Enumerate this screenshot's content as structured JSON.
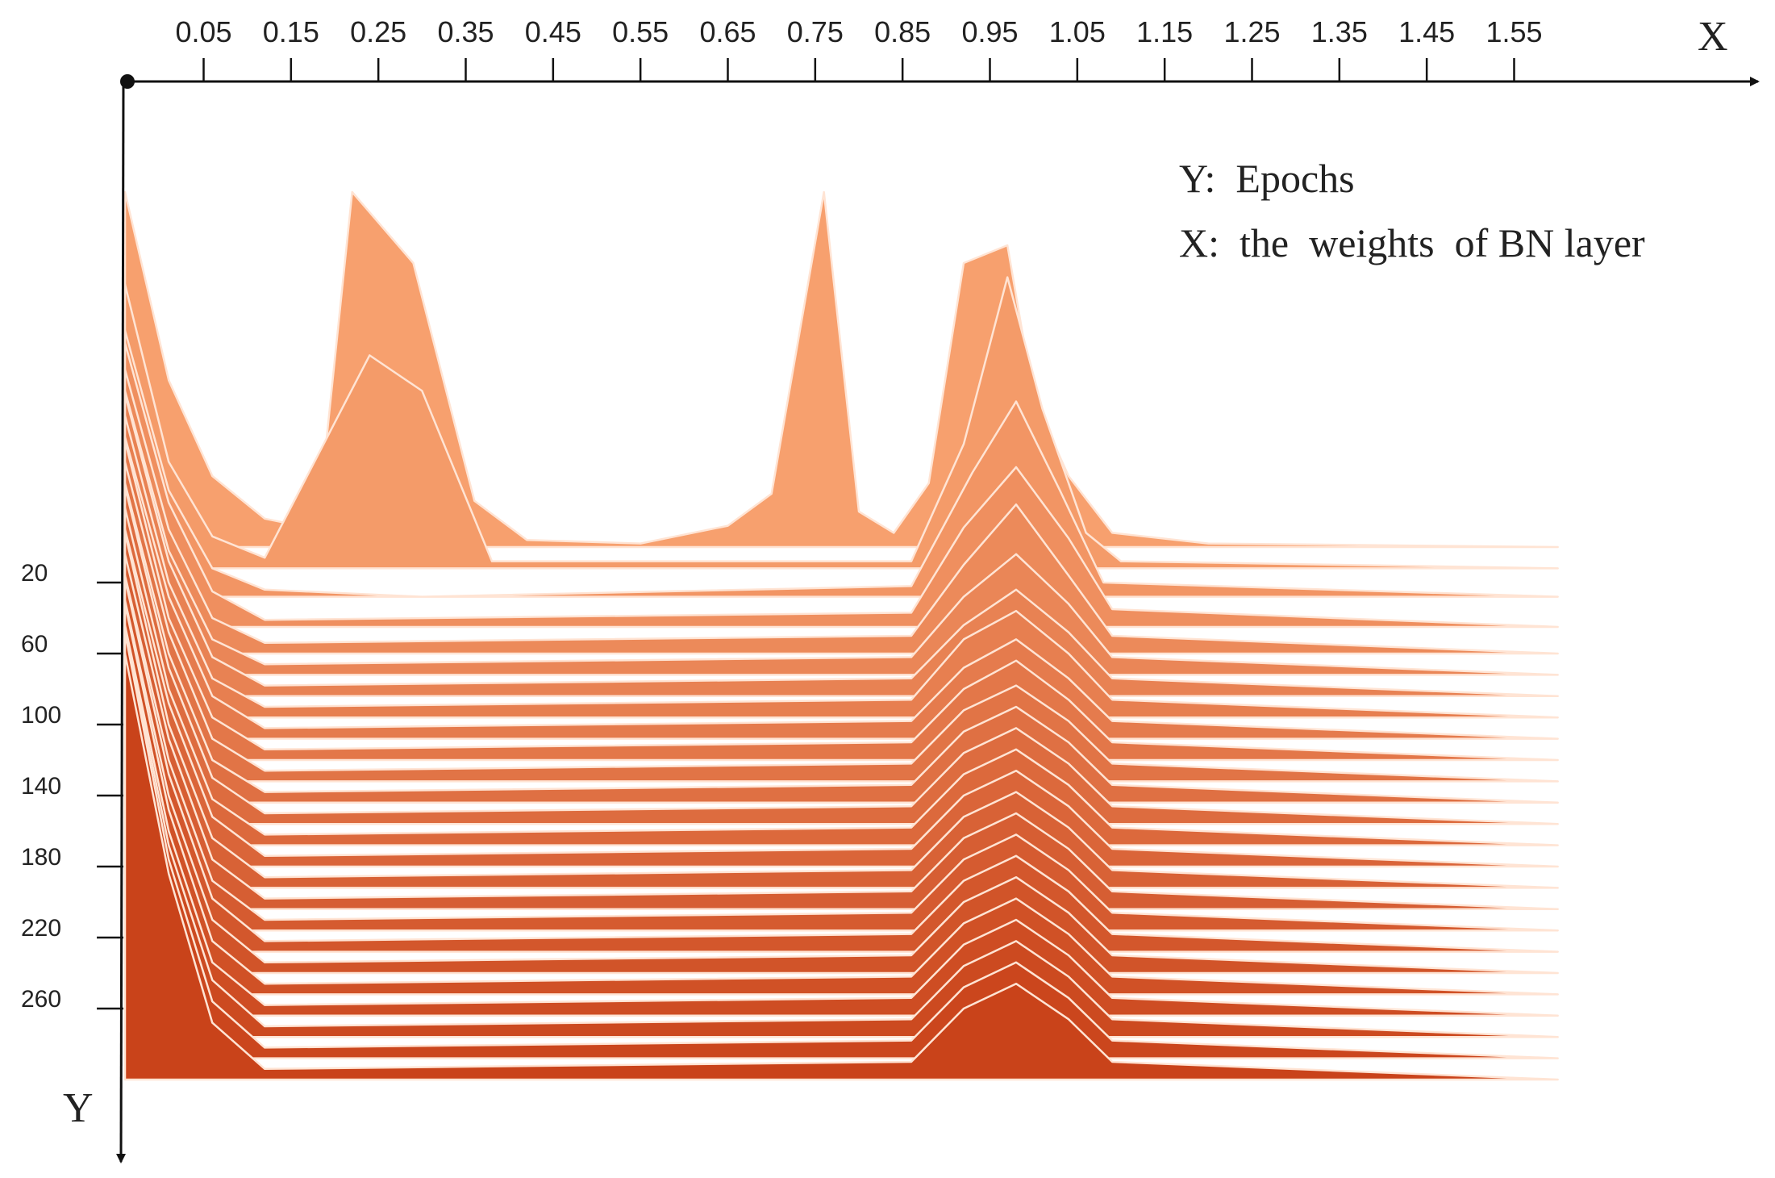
{
  "chart_data": {
    "type": "ridgeline",
    "title": "",
    "xlabel": "X",
    "ylabel": "Y",
    "legend": {
      "placement": "top-right",
      "lines": [
        "Y:  Epochs",
        "X:  the  weights  of BN layer"
      ]
    },
    "x_ticks": [
      "0.05",
      "0.15",
      "0.25",
      "0.35",
      "0.45",
      "0.55",
      "0.65",
      "0.75",
      "0.85",
      "0.95",
      "1.05",
      "1.15",
      "1.25",
      "1.35",
      "1.45",
      "1.55"
    ],
    "y_ticks": [
      "20",
      "60",
      "100",
      "140",
      "180",
      "220",
      "260"
    ],
    "xlim": [
      -0.04,
      1.7
    ],
    "ylim_epochs": [
      0,
      300
    ],
    "colors": {
      "early": "#F7A06E",
      "late": "#C9431A",
      "ridge_edge": "#FFE4D4",
      "axis": "#111111"
    },
    "series": [
      {
        "epoch": 0,
        "x": [
          -0.04,
          0.01,
          0.06,
          0.12,
          0.18,
          0.22,
          0.29,
          0.36,
          0.42,
          0.55,
          0.65,
          0.7,
          0.76,
          0.8,
          0.84,
          0.88,
          0.92,
          0.97,
          1.0,
          1.04,
          1.09,
          1.2,
          1.6
        ],
        "y": [
          1.0,
          0.47,
          0.2,
          0.08,
          0.05,
          1.0,
          0.8,
          0.13,
          0.02,
          0.01,
          0.06,
          0.15,
          1.0,
          0.1,
          0.04,
          0.18,
          0.8,
          0.85,
          0.42,
          0.2,
          0.04,
          0.01,
          0.0
        ]
      },
      {
        "epoch": 12,
        "x": [
          -0.04,
          0.01,
          0.06,
          0.12,
          0.24,
          0.3,
          0.38,
          0.86,
          0.92,
          0.97,
          1.01,
          1.06,
          1.1,
          1.6
        ],
        "y": [
          0.8,
          0.3,
          0.09,
          0.03,
          0.6,
          0.5,
          0.02,
          0.02,
          0.35,
          0.82,
          0.45,
          0.1,
          0.02,
          0.0
        ]
      },
      {
        "epoch": 28,
        "x": [
          -0.04,
          0.01,
          0.06,
          0.12,
          0.3,
          0.86,
          0.93,
          0.98,
          1.03,
          1.08,
          1.6
        ],
        "y": [
          0.75,
          0.3,
          0.08,
          0.02,
          0.0,
          0.03,
          0.35,
          0.55,
          0.3,
          0.04,
          0.0
        ]
      },
      {
        "epoch": 45,
        "x": [
          -0.04,
          0.01,
          0.06,
          0.12,
          0.86,
          0.92,
          0.98,
          1.04,
          1.09,
          1.6
        ],
        "y": [
          0.8,
          0.35,
          0.1,
          0.02,
          0.04,
          0.28,
          0.45,
          0.25,
          0.05,
          0.0
        ]
      },
      {
        "epoch": 60,
        "x": [
          -0.04,
          0.01,
          0.06,
          0.12,
          0.86,
          0.92,
          0.98,
          1.04,
          1.09,
          1.6
        ],
        "y": [
          0.8,
          0.35,
          0.1,
          0.03,
          0.05,
          0.25,
          0.42,
          0.22,
          0.05,
          0.0
        ]
      },
      {
        "epoch": 72,
        "x": [
          -0.04,
          0.01,
          0.06,
          0.12,
          0.86,
          0.92,
          0.98,
          1.04,
          1.09,
          1.6
        ],
        "y": [
          0.8,
          0.35,
          0.1,
          0.03,
          0.05,
          0.22,
          0.34,
          0.2,
          0.05,
          0.0
        ]
      },
      {
        "epoch": 84,
        "x": [
          -0.04,
          0.01,
          0.06,
          0.12,
          0.86,
          0.92,
          0.98,
          1.04,
          1.09,
          1.6
        ],
        "y": [
          0.85,
          0.38,
          0.11,
          0.03,
          0.05,
          0.2,
          0.3,
          0.18,
          0.05,
          0.0
        ]
      },
      {
        "epoch": 96,
        "x": [
          -0.04,
          0.01,
          0.06,
          0.12,
          0.86,
          0.92,
          0.98,
          1.04,
          1.09,
          1.6
        ],
        "y": [
          0.85,
          0.38,
          0.11,
          0.03,
          0.05,
          0.22,
          0.3,
          0.18,
          0.05,
          0.0
        ]
      },
      {
        "epoch": 108,
        "x": [
          -0.04,
          0.01,
          0.06,
          0.12,
          0.86,
          0.92,
          0.98,
          1.04,
          1.09,
          1.6
        ],
        "y": [
          0.85,
          0.4,
          0.12,
          0.03,
          0.05,
          0.2,
          0.28,
          0.17,
          0.05,
          0.0
        ]
      },
      {
        "epoch": 120,
        "x": [
          -0.04,
          0.01,
          0.06,
          0.12,
          0.86,
          0.92,
          0.98,
          1.04,
          1.09,
          1.6
        ],
        "y": [
          0.9,
          0.4,
          0.12,
          0.03,
          0.05,
          0.2,
          0.28,
          0.17,
          0.05,
          0.0
        ]
      },
      {
        "epoch": 132,
        "x": [
          -0.04,
          0.01,
          0.06,
          0.12,
          0.86,
          0.92,
          0.98,
          1.04,
          1.09,
          1.6
        ],
        "y": [
          0.9,
          0.42,
          0.12,
          0.03,
          0.05,
          0.2,
          0.27,
          0.17,
          0.05,
          0.0
        ]
      },
      {
        "epoch": 144,
        "x": [
          -0.04,
          0.01,
          0.06,
          0.12,
          0.86,
          0.92,
          0.98,
          1.04,
          1.09,
          1.6
        ],
        "y": [
          0.9,
          0.42,
          0.12,
          0.03,
          0.05,
          0.2,
          0.27,
          0.17,
          0.05,
          0.0
        ]
      },
      {
        "epoch": 156,
        "x": [
          -0.04,
          0.01,
          0.06,
          0.12,
          0.86,
          0.92,
          0.98,
          1.04,
          1.09,
          1.6
        ],
        "y": [
          0.95,
          0.44,
          0.13,
          0.03,
          0.05,
          0.2,
          0.27,
          0.17,
          0.05,
          0.0
        ]
      },
      {
        "epoch": 168,
        "x": [
          -0.04,
          0.01,
          0.06,
          0.12,
          0.86,
          0.92,
          0.98,
          1.04,
          1.09,
          1.6
        ],
        "y": [
          0.95,
          0.44,
          0.13,
          0.03,
          0.05,
          0.2,
          0.27,
          0.17,
          0.05,
          0.0
        ]
      },
      {
        "epoch": 180,
        "x": [
          -0.04,
          0.01,
          0.06,
          0.12,
          0.86,
          0.92,
          0.98,
          1.04,
          1.09,
          1.6
        ],
        "y": [
          0.95,
          0.46,
          0.14,
          0.03,
          0.05,
          0.2,
          0.27,
          0.17,
          0.05,
          0.0
        ]
      },
      {
        "epoch": 192,
        "x": [
          -0.04,
          0.01,
          0.06,
          0.12,
          0.86,
          0.92,
          0.98,
          1.04,
          1.09,
          1.6
        ],
        "y": [
          1.0,
          0.46,
          0.14,
          0.03,
          0.05,
          0.2,
          0.27,
          0.17,
          0.05,
          0.0
        ]
      },
      {
        "epoch": 204,
        "x": [
          -0.04,
          0.01,
          0.06,
          0.12,
          0.86,
          0.92,
          0.98,
          1.04,
          1.09,
          1.6
        ],
        "y": [
          1.0,
          0.48,
          0.14,
          0.03,
          0.05,
          0.2,
          0.27,
          0.17,
          0.05,
          0.0
        ]
      },
      {
        "epoch": 216,
        "x": [
          -0.04,
          0.01,
          0.06,
          0.12,
          0.86,
          0.92,
          0.98,
          1.04,
          1.09,
          1.6
        ],
        "y": [
          1.0,
          0.48,
          0.14,
          0.03,
          0.05,
          0.2,
          0.27,
          0.17,
          0.05,
          0.0
        ]
      },
      {
        "epoch": 228,
        "x": [
          -0.04,
          0.01,
          0.06,
          0.12,
          0.86,
          0.92,
          0.98,
          1.04,
          1.09,
          1.6
        ],
        "y": [
          1.05,
          0.5,
          0.15,
          0.03,
          0.05,
          0.2,
          0.27,
          0.17,
          0.05,
          0.0
        ]
      },
      {
        "epoch": 240,
        "x": [
          -0.04,
          0.01,
          0.06,
          0.12,
          0.86,
          0.92,
          0.98,
          1.04,
          1.09,
          1.6
        ],
        "y": [
          1.05,
          0.5,
          0.15,
          0.03,
          0.05,
          0.2,
          0.27,
          0.17,
          0.05,
          0.0
        ]
      },
      {
        "epoch": 252,
        "x": [
          -0.04,
          0.01,
          0.06,
          0.12,
          0.86,
          0.92,
          0.98,
          1.04,
          1.09,
          1.6
        ],
        "y": [
          1.1,
          0.52,
          0.15,
          0.03,
          0.05,
          0.2,
          0.27,
          0.17,
          0.05,
          0.0
        ]
      },
      {
        "epoch": 264,
        "x": [
          -0.04,
          0.01,
          0.06,
          0.12,
          0.86,
          0.92,
          0.98,
          1.04,
          1.09,
          1.6
        ],
        "y": [
          1.1,
          0.52,
          0.15,
          0.03,
          0.05,
          0.2,
          0.27,
          0.17,
          0.05,
          0.0
        ]
      },
      {
        "epoch": 276,
        "x": [
          -0.04,
          0.01,
          0.06,
          0.12,
          0.86,
          0.92,
          0.98,
          1.04,
          1.09,
          1.6
        ],
        "y": [
          1.15,
          0.54,
          0.16,
          0.03,
          0.05,
          0.2,
          0.27,
          0.17,
          0.05,
          0.0
        ]
      },
      {
        "epoch": 288,
        "x": [
          -0.04,
          0.01,
          0.06,
          0.12,
          0.86,
          0.92,
          0.98,
          1.04,
          1.09,
          1.6
        ],
        "y": [
          1.2,
          0.56,
          0.16,
          0.03,
          0.05,
          0.2,
          0.27,
          0.17,
          0.05,
          0.0
        ]
      },
      {
        "epoch": 300,
        "x": [
          -0.04,
          0.01,
          0.06,
          0.12,
          0.86,
          0.92,
          0.98,
          1.04,
          1.09,
          1.6
        ],
        "y": [
          1.2,
          0.58,
          0.16,
          0.03,
          0.05,
          0.2,
          0.27,
          0.17,
          0.05,
          0.0
        ]
      }
    ]
  }
}
